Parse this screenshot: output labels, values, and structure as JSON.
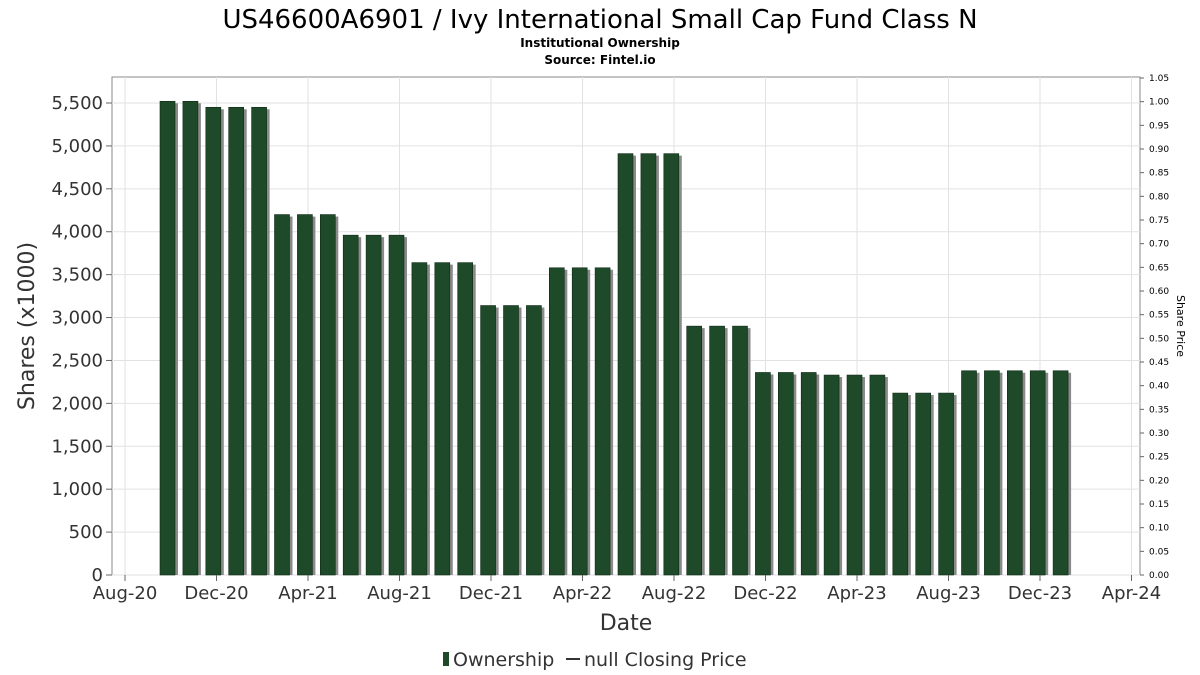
{
  "chart_data": {
    "type": "bar",
    "title": "US46600A6901 / Ivy International Small Cap Fund Class N",
    "subtitle_lines": [
      "Institutional Ownership",
      "Source: Fintel.io"
    ],
    "xlabel": "Date",
    "ylabel": "Shares (x1000)",
    "y2label": "Share Price",
    "ylim": [
      0,
      5500
    ],
    "y2lim": [
      0,
      1.05
    ],
    "y_ticks": [
      "0",
      "500",
      "1,000",
      "1,500",
      "2,000",
      "2,500",
      "3,000",
      "3,500",
      "4,000",
      "4,500",
      "5,000",
      "5,500"
    ],
    "y2_ticks": [
      "0.00",
      "0.05",
      "0.10",
      "0.15",
      "0.20",
      "0.25",
      "0.30",
      "0.35",
      "0.40",
      "0.45",
      "0.50",
      "0.55",
      "0.60",
      "0.65",
      "0.70",
      "0.75",
      "0.80",
      "0.85",
      "0.90",
      "0.95",
      "1.00",
      "1.05"
    ],
    "x_ticks": [
      "Aug-20",
      "Dec-20",
      "Apr-21",
      "Aug-21",
      "Dec-21",
      "Apr-22",
      "Aug-22",
      "Dec-22",
      "Apr-23",
      "Aug-23",
      "Dec-23",
      "Apr-24"
    ],
    "grid": true,
    "legend_position": "bottom",
    "series": [
      {
        "name": "Ownership",
        "color": "#1e4a2a",
        "values": [
          5520,
          5520,
          5450,
          5450,
          5450,
          4200,
          4200,
          4200,
          3960,
          3960,
          3960,
          3640,
          3640,
          3640,
          3140,
          3140,
          3140,
          3580,
          3580,
          3580,
          4910,
          4910,
          4910,
          2900,
          2900,
          2900,
          2360,
          2360,
          2360,
          2330,
          2330,
          2330,
          2120,
          2120,
          2120,
          2380,
          2380,
          2380,
          2380,
          2380
        ]
      }
    ],
    "legend_items": [
      "Ownership",
      "null Closing Price"
    ]
  }
}
